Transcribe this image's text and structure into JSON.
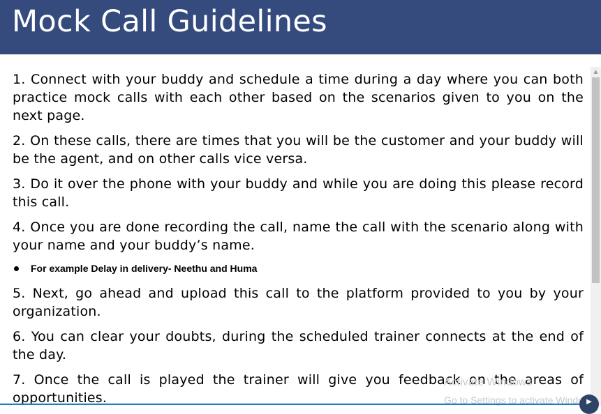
{
  "header": {
    "title": "Mock Call Guidelines",
    "background": "#354b7e"
  },
  "guidelines": [
    "1. Connect with your buddy and schedule a time during a day where you can both practice mock calls with each other based on the scenarios given to you on the next page.",
    "2. On these calls, there are times that you will be the customer and your buddy will be the agent, and on other calls vice versa.",
    "3. Do it over the phone with your buddy and while you are doing this please record this call.",
    "4. Once you are done recording the call, name the call with the scenario along with your name and your buddy’s name.",
    "5. Next, go ahead and upload this call to the platform provided to you by your organization.",
    "6. You can clear your doubts, during the scheduled trainer connects at the end of the day.",
    "7. Once the call is played the trainer will give you feedback on the areas of opportunities."
  ],
  "example_bullet": "For example Delay in delivery- Neethu and Huma",
  "watermark": {
    "line1": "Activate Windows",
    "line2": "Go to Settings to activate Windows."
  },
  "colors": {
    "accent_line": "#1e7bc4"
  },
  "icons": {
    "scroll_up": "chevron-up-icon",
    "corner": "play-icon"
  }
}
